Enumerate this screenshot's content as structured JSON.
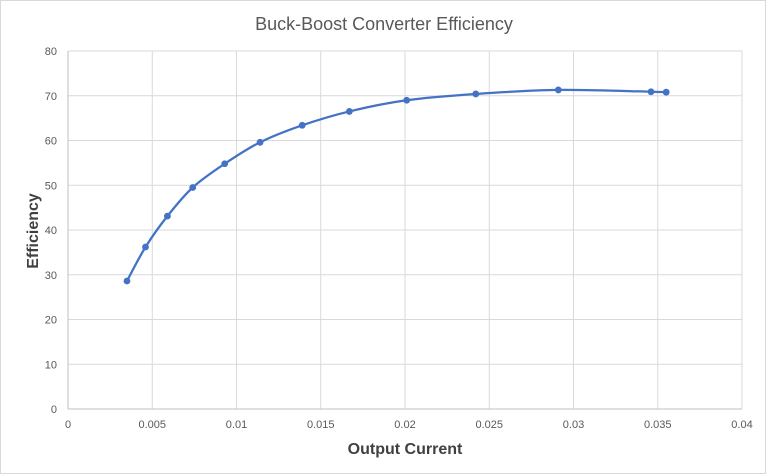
{
  "chart_data": {
    "type": "scatter",
    "title": "Buck-Boost Converter Efficiency",
    "xlabel": "Output Current",
    "ylabel": "Efficiency",
    "xlim": [
      0,
      0.04
    ],
    "ylim": [
      0,
      80
    ],
    "xticks": [
      "0",
      "0.005",
      "0.01",
      "0.015",
      "0.02",
      "0.025",
      "0.03",
      "0.035",
      "0.04"
    ],
    "yticks": [
      "0",
      "10",
      "20",
      "30",
      "40",
      "50",
      "60",
      "70",
      "80"
    ],
    "grid": true,
    "smooth": true,
    "series": [
      {
        "color": "#4472c4",
        "points": [
          {
            "x": 0.0035,
            "y": 28.6
          },
          {
            "x": 0.0046,
            "y": 36.2
          },
          {
            "x": 0.0059,
            "y": 43.1
          },
          {
            "x": 0.0074,
            "y": 49.5
          },
          {
            "x": 0.0093,
            "y": 54.8
          },
          {
            "x": 0.0114,
            "y": 59.6
          },
          {
            "x": 0.0139,
            "y": 63.4
          },
          {
            "x": 0.0167,
            "y": 66.5
          },
          {
            "x": 0.0201,
            "y": 69.0
          },
          {
            "x": 0.0242,
            "y": 70.4
          },
          {
            "x": 0.0291,
            "y": 71.3
          },
          {
            "x": 0.0346,
            "y": 70.9
          },
          {
            "x": 0.0355,
            "y": 70.8
          }
        ]
      }
    ]
  }
}
